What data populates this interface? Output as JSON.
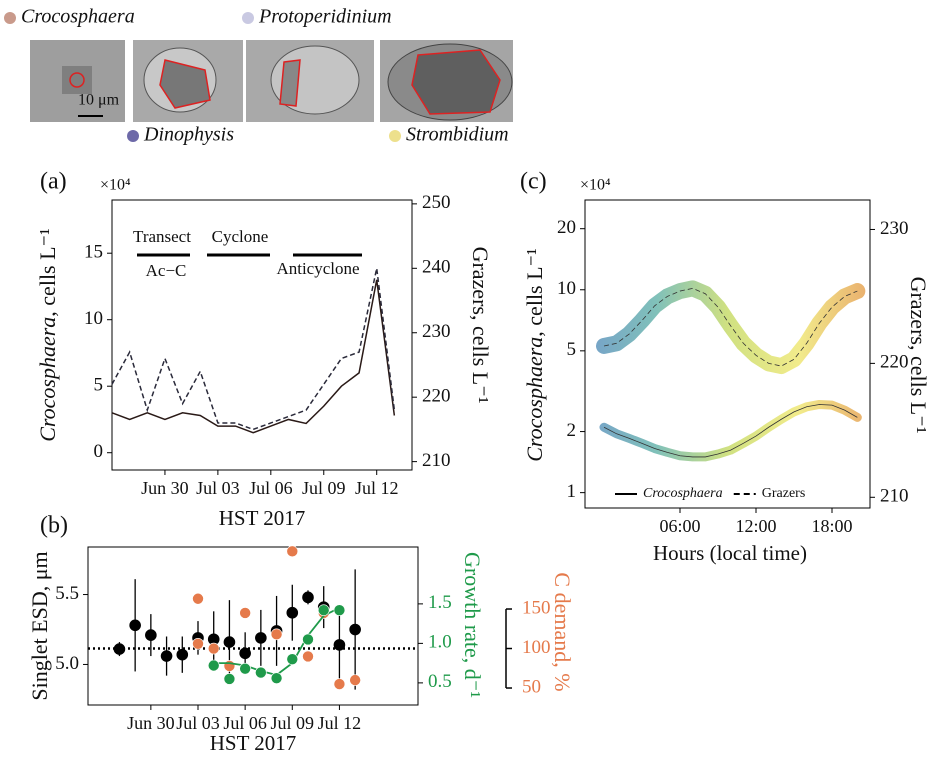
{
  "figure_legend": [
    {
      "name": "Crocosphaera",
      "color": "#c99a8b"
    },
    {
      "name": "Protoperidinium",
      "color": "#c9c9e2"
    },
    {
      "name": "Dinophysis",
      "color": "#6d69a8"
    },
    {
      "name": "Strombidium",
      "color": "#ede08c"
    }
  ],
  "scale_bar": "10 μm",
  "chart_data": [
    {
      "type": "line",
      "label": "(a)",
      "exponent": "×10⁴",
      "ylabel": [
        "Crocosphaera",
        ", cells L⁻¹"
      ],
      "y2label": "Grazers, cells L⁻¹",
      "xlabel": "HST 2017",
      "annotations": [
        "Transect",
        "Ac−C",
        "Cyclone",
        "Anticyclone"
      ],
      "x": [
        "Jun 27",
        "Jun 28",
        "Jun 29",
        "Jun 30",
        "Jul 1",
        "Jul 2",
        "Jul 3",
        "Jul 4",
        "Jul 5",
        "Jul 6",
        "Jul 7",
        "Jul 8",
        "Jul 9",
        "Jul 10",
        "Jul 11",
        "Jul 12",
        "Jul 13"
      ],
      "series": [
        {
          "color": "#2a1a17",
          "dash": false,
          "values": [
            3,
            2.5,
            3,
            2.5,
            3,
            2.8,
            2,
            2,
            1.5,
            2,
            2.5,
            2.2,
            3.5,
            5,
            6,
            13,
            2.8
          ]
        },
        {
          "color": "#2a2a3a",
          "dash": true,
          "axis": "y2",
          "values": [
            222,
            227,
            218,
            226,
            219,
            224,
            216,
            216,
            215,
            216,
            217,
            218,
            222,
            226,
            227,
            240,
            218
          ]
        }
      ],
      "xlim": [
        "Jun 27",
        "Jul 14"
      ],
      "xticks": [
        "Jun 30",
        "Jul 03",
        "Jul 06",
        "Jul 09",
        "Jul 12"
      ],
      "ylim": [
        -1.3,
        19
      ],
      "yticks": [
        0,
        5,
        10,
        15
      ],
      "y2lim": [
        208.7,
        250.6
      ],
      "y2ticks": [
        210,
        220,
        230,
        240,
        250
      ]
    },
    {
      "type": "scatter",
      "label": "(b)",
      "ylabel": "Singlet ESD, μm",
      "y2label": "Growth rate, d⁻¹",
      "y3label": "C demand, %",
      "xlabel": "HST 2017",
      "y2color": "#1f9a4a",
      "y3color": "#e57a4b",
      "series": [
        {
          "color": "#000000",
          "marker": true,
          "x": [
            "Jun 28",
            "Jun 29",
            "Jun 30",
            "Jul 1",
            "Jul 2",
            "Jul 3",
            "Jul 4",
            "Jul 5",
            "Jul 6",
            "Jul 7",
            "Jul 8",
            "Jul 9",
            "Jul 10",
            "Jul 11",
            "Jul 12",
            "Jul 13"
          ],
          "values": [
            5.11,
            5.28,
            5.21,
            5.06,
            5.07,
            5.19,
            5.18,
            5.16,
            5.08,
            5.19,
            5.24,
            5.37,
            5.48,
            5.41,
            5.14,
            5.25
          ],
          "errors": [
            0.05,
            0.33,
            0.15,
            0.14,
            0.13,
            0.12,
            0.2,
            0.3,
            0.15,
            0.2,
            0.25,
            0.2,
            0.05,
            0.15,
            0.25,
            0.43
          ]
        },
        {
          "color": "#e57a4b",
          "marker": true,
          "axis": "y3",
          "x": [
            "Jul 3",
            "Jul 3",
            "Jul 4",
            "Jul 5",
            "Jul 6",
            "Jul 7",
            "Jul 8",
            "Jul 9",
            "Jul 10",
            "Jul 11",
            "Jul 12",
            "Jul 13"
          ],
          "values": [
            163,
            106,
            100,
            78,
            145,
            70,
            118,
            223,
            90,
            145,
            55,
            60
          ]
        },
        {
          "color": "#1f9a4a",
          "marker": false,
          "axis": "y2",
          "x": [
            "Jul 4",
            "Jul 5",
            "Jul 6",
            "Jul 7",
            "Jul 8",
            "Jul 9",
            "Jul 10",
            "Jul 11",
            "Jul 12"
          ],
          "values": [
            0.75,
            0.75,
            0.72,
            0.65,
            0.6,
            0.75,
            1.1,
            1.35,
            1.45
          ]
        },
        {
          "color": "#1f9a4a",
          "marker": true,
          "axis": "y2",
          "x": [
            "Jul 4",
            "Jul 5",
            "Jul 6",
            "Jul 7",
            "Jul 8",
            "Jul 9",
            "Jul 10",
            "Jul 11",
            "Jul 12"
          ],
          "values": [
            0.72,
            0.55,
            0.68,
            0.63,
            0.56,
            0.8,
            1.05,
            1.42,
            1.42
          ]
        }
      ],
      "reference_line": {
        "axis": "y3",
        "value": 100
      },
      "xlim": [
        "Jun 26",
        "Jul 17"
      ],
      "xticks": [
        "Jun 30",
        "Jul 03",
        "Jul 06",
        "Jul 09",
        "Jul 12"
      ],
      "ylim": [
        4.71,
        5.84
      ],
      "yticks": [
        {
          "value": 5,
          "label": "5.0"
        },
        5.5
      ],
      "y2lim": [
        0.22,
        2.22
      ],
      "y2ticks": [
        0.5,
        {
          "value": 1,
          "label": "1.0"
        },
        1.5
      ],
      "y3lim": [
        28.5,
        228.5
      ],
      "y3ticks": [
        50,
        100,
        150
      ]
    },
    {
      "type": "line",
      "label": "(c)",
      "exponent": "×10⁴",
      "ylabel": [
        "Crocosphaera",
        ", cells L⁻¹"
      ],
      "y2label": "Grazers, cells L⁻¹",
      "xlabel": "Hours (local time)",
      "ylog": true,
      "legend": "bottom",
      "colormap": [
        "#3b78b3",
        "#4aa69c",
        "#bcd44c",
        "#ece35a",
        "#e08a2e"
      ],
      "x": [
        0,
        1,
        2,
        3,
        4,
        5,
        6,
        7,
        8,
        9,
        10,
        11,
        12,
        13,
        14,
        15,
        16,
        17,
        18,
        19,
        20
      ],
      "series": [
        {
          "name": "Crocosphaera",
          "dash": false,
          "values": [
            2.1,
            1.95,
            1.85,
            1.75,
            1.65,
            1.58,
            1.52,
            1.5,
            1.5,
            1.55,
            1.62,
            1.75,
            1.9,
            2.1,
            2.3,
            2.5,
            2.65,
            2.72,
            2.7,
            2.55,
            2.35
          ]
        },
        {
          "name": "Grazers",
          "dash": true,
          "axis": "y2",
          "values": [
            221.3,
            221.5,
            222.2,
            223.2,
            224.3,
            225,
            225.4,
            225.6,
            225.2,
            224.2,
            222.8,
            221.5,
            220.6,
            220,
            219.8,
            220.3,
            221.5,
            223,
            224.2,
            225,
            225.4
          ]
        }
      ],
      "xlim": [
        -1.5,
        21
      ],
      "xticks": [
        {
          "value": 6,
          "label": "06:00"
        },
        {
          "value": 12,
          "label": "12:00"
        },
        {
          "value": 18,
          "label": "18:00"
        }
      ],
      "ylim": [
        0.84,
        27.7
      ],
      "yticks": [
        1,
        2,
        5,
        10,
        20
      ],
      "y2lim": [
        209.2,
        232.2
      ],
      "y2ticks": [
        210,
        220,
        230
      ]
    }
  ]
}
